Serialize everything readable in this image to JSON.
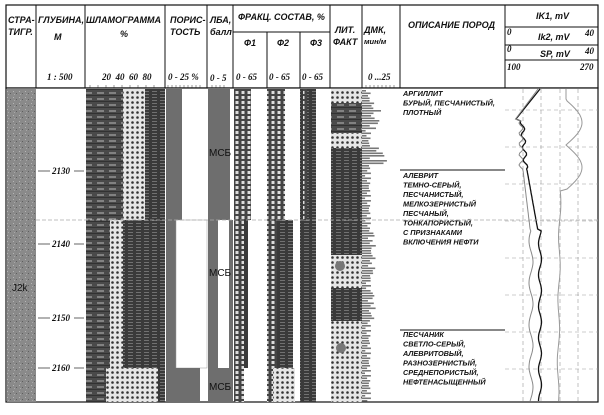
{
  "header": {
    "strat": [
      "СТРА-",
      "ТИГР."
    ],
    "depth": [
      "ГЛУБИНА,",
      "М"
    ],
    "depth_scale": "1 : 500",
    "shlam": [
      "ШЛАМОГРАММА",
      "%"
    ],
    "shlam_scale": "20  40  60  80",
    "porosity": [
      "ПОРИС-",
      "ТОСТЬ"
    ],
    "porosity_scale": "0 - 25 %",
    "lba": [
      "ЛБА,",
      "балл"
    ],
    "lba_scale": "0 - 5",
    "fraction": "ФРАКЦ. СОСТАВ, %",
    "f1": "Ф1",
    "f2": "Ф2",
    "f3": "Ф3",
    "f_scale": "0 - 65",
    "litfact": [
      "ЛИТ.",
      "ФАКТ"
    ],
    "dmk": [
      "ДМК,",
      "мин/м"
    ],
    "dmk_scale": "0 ...25",
    "description": "ОПИСАНИЕ ПОРОД",
    "ik1": "IK1, mV",
    "ik2": "Ik2, mV",
    "ik2_min": "0",
    "ik2_max": "40",
    "sp": "SP, mV",
    "sp_min": "0",
    "sp_max": "40",
    "scale_min": "100",
    "scale_max": "270"
  },
  "strat_label": "J2k",
  "depth_labels": [
    "2130",
    "2140",
    "2150",
    "2160"
  ],
  "lba_labels": [
    "МСБ",
    "МСБ",
    "МСБ"
  ],
  "descriptions": [
    [
      "АРГИЛЛИТ",
      "БУРЫЙ, ПЕСЧАНИСТЫЙ,",
      "ПЛОТНЫЙ"
    ],
    [
      "АЛЕВРИТ",
      "ТЕМНО-СЕРЫЙ,",
      "ПЕСЧАНИСТЫЙ,",
      "МЕЛКОЗЕРНИСТЫЙ",
      "ПЕСЧАНЫЙ,",
      "ТОНКАПОРИСТЫЙ,",
      "С ПРИЗНАКАМИ",
      "ВКЛЮЧЕНИЯ НЕФТИ"
    ],
    [
      "ПЕСЧАНИК",
      "СВЕТЛО-СЕРЫЙ,",
      "АЛЕВРИТОВЫЙ,",
      "РАЗНОЗЕРНИСТЫЙ,",
      "СРЕДНЕПОРИСТЫЙ,",
      "НЕФТЕНАСЫЩЕННЫЙ"
    ]
  ],
  "colors": {
    "dark": "#4a4a4a",
    "mid": "#6e6e6e",
    "strat": "#8a8a8a",
    "light": "#e8e8e8"
  }
}
